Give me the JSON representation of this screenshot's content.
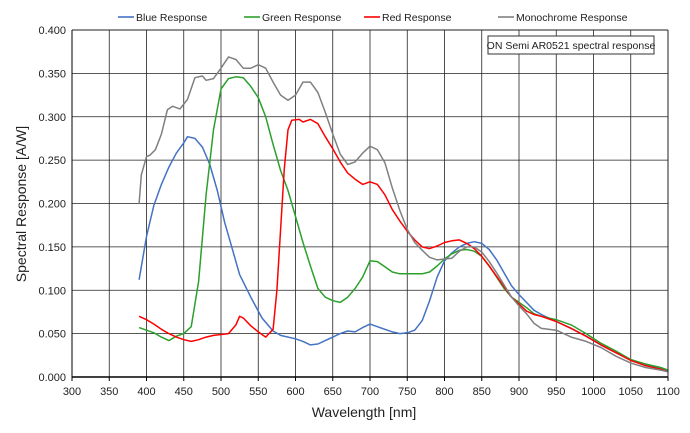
{
  "chart_data": {
    "type": "line",
    "title": "",
    "xlabel": "Wavelength [nm]",
    "ylabel": "Spectral Response [A/W]",
    "xlim": [
      300,
      1100
    ],
    "ylim": [
      0,
      0.4
    ],
    "x_ticks": [
      "300",
      "350",
      "400",
      "450",
      "500",
      "550",
      "600",
      "650",
      "700",
      "750",
      "800",
      "850",
      "900",
      "950",
      "1000",
      "1050",
      "1100"
    ],
    "y_ticks": [
      "0.000",
      "0.050",
      "0.100",
      "0.150",
      "0.200",
      "0.250",
      "0.300",
      "0.350",
      "0.400"
    ],
    "grid": true,
    "legend_position": "top",
    "annotation": "ON Semi AR0521 spectral response",
    "series": [
      {
        "name": "Blue Response",
        "color": "#4472c4",
        "points": [
          [
            390,
            0.112
          ],
          [
            400,
            0.162
          ],
          [
            410,
            0.198
          ],
          [
            420,
            0.222
          ],
          [
            430,
            0.242
          ],
          [
            440,
            0.258
          ],
          [
            450,
            0.27
          ],
          [
            455,
            0.277
          ],
          [
            465,
            0.275
          ],
          [
            475,
            0.265
          ],
          [
            485,
            0.245
          ],
          [
            495,
            0.215
          ],
          [
            505,
            0.178
          ],
          [
            515,
            0.148
          ],
          [
            525,
            0.118
          ],
          [
            540,
            0.092
          ],
          [
            555,
            0.068
          ],
          [
            570,
            0.053
          ],
          [
            580,
            0.048
          ],
          [
            600,
            0.044
          ],
          [
            610,
            0.041
          ],
          [
            620,
            0.037
          ],
          [
            630,
            0.038
          ],
          [
            640,
            0.042
          ],
          [
            650,
            0.046
          ],
          [
            660,
            0.05
          ],
          [
            670,
            0.053
          ],
          [
            680,
            0.052
          ],
          [
            690,
            0.057
          ],
          [
            700,
            0.061
          ],
          [
            710,
            0.058
          ],
          [
            720,
            0.055
          ],
          [
            730,
            0.052
          ],
          [
            740,
            0.05
          ],
          [
            750,
            0.051
          ],
          [
            760,
            0.054
          ],
          [
            770,
            0.065
          ],
          [
            780,
            0.088
          ],
          [
            790,
            0.115
          ],
          [
            800,
            0.134
          ],
          [
            810,
            0.143
          ],
          [
            820,
            0.15
          ],
          [
            830,
            0.154
          ],
          [
            840,
            0.156
          ],
          [
            850,
            0.154
          ],
          [
            860,
            0.147
          ],
          [
            870,
            0.135
          ],
          [
            880,
            0.12
          ],
          [
            890,
            0.105
          ],
          [
            900,
            0.095
          ],
          [
            910,
            0.086
          ],
          [
            920,
            0.077
          ],
          [
            930,
            0.072
          ],
          [
            950,
            0.064
          ],
          [
            970,
            0.056
          ],
          [
            990,
            0.047
          ],
          [
            1010,
            0.037
          ],
          [
            1030,
            0.028
          ],
          [
            1050,
            0.02
          ],
          [
            1070,
            0.014
          ],
          [
            1090,
            0.01
          ],
          [
            1100,
            0.007
          ]
        ]
      },
      {
        "name": "Green Response",
        "color": "#2ca02c",
        "points": [
          [
            390,
            0.057
          ],
          [
            400,
            0.054
          ],
          [
            410,
            0.051
          ],
          [
            420,
            0.046
          ],
          [
            430,
            0.042
          ],
          [
            440,
            0.047
          ],
          [
            450,
            0.05
          ],
          [
            460,
            0.058
          ],
          [
            470,
            0.11
          ],
          [
            480,
            0.21
          ],
          [
            490,
            0.285
          ],
          [
            500,
            0.332
          ],
          [
            510,
            0.344
          ],
          [
            520,
            0.346
          ],
          [
            530,
            0.345
          ],
          [
            540,
            0.335
          ],
          [
            550,
            0.322
          ],
          [
            560,
            0.3
          ],
          [
            570,
            0.268
          ],
          [
            580,
            0.238
          ],
          [
            590,
            0.215
          ],
          [
            600,
            0.185
          ],
          [
            610,
            0.155
          ],
          [
            620,
            0.128
          ],
          [
            630,
            0.102
          ],
          [
            640,
            0.092
          ],
          [
            650,
            0.088
          ],
          [
            660,
            0.086
          ],
          [
            670,
            0.092
          ],
          [
            680,
            0.102
          ],
          [
            690,
            0.115
          ],
          [
            700,
            0.134
          ],
          [
            710,
            0.133
          ],
          [
            720,
            0.127
          ],
          [
            730,
            0.121
          ],
          [
            740,
            0.119
          ],
          [
            750,
            0.119
          ],
          [
            760,
            0.119
          ],
          [
            770,
            0.119
          ],
          [
            780,
            0.121
          ],
          [
            790,
            0.128
          ],
          [
            800,
            0.136
          ],
          [
            810,
            0.142
          ],
          [
            820,
            0.146
          ],
          [
            830,
            0.147
          ],
          [
            840,
            0.145
          ],
          [
            850,
            0.139
          ],
          [
            860,
            0.128
          ],
          [
            870,
            0.115
          ],
          [
            880,
            0.102
          ],
          [
            890,
            0.092
          ],
          [
            900,
            0.086
          ],
          [
            910,
            0.08
          ],
          [
            920,
            0.073
          ],
          [
            930,
            0.07
          ],
          [
            950,
            0.066
          ],
          [
            970,
            0.06
          ],
          [
            990,
            0.05
          ],
          [
            1010,
            0.039
          ],
          [
            1030,
            0.03
          ],
          [
            1050,
            0.02
          ],
          [
            1070,
            0.015
          ],
          [
            1090,
            0.011
          ],
          [
            1100,
            0.008
          ]
        ]
      },
      {
        "name": "Red Response",
        "color": "#ff0000",
        "points": [
          [
            390,
            0.07
          ],
          [
            400,
            0.066
          ],
          [
            410,
            0.061
          ],
          [
            420,
            0.055
          ],
          [
            430,
            0.05
          ],
          [
            440,
            0.046
          ],
          [
            450,
            0.043
          ],
          [
            460,
            0.041
          ],
          [
            470,
            0.043
          ],
          [
            480,
            0.046
          ],
          [
            490,
            0.048
          ],
          [
            500,
            0.049
          ],
          [
            510,
            0.05
          ],
          [
            520,
            0.06
          ],
          [
            525,
            0.07
          ],
          [
            530,
            0.068
          ],
          [
            540,
            0.059
          ],
          [
            550,
            0.052
          ],
          [
            560,
            0.046
          ],
          [
            570,
            0.055
          ],
          [
            575,
            0.1
          ],
          [
            580,
            0.17
          ],
          [
            585,
            0.24
          ],
          [
            590,
            0.285
          ],
          [
            595,
            0.296
          ],
          [
            605,
            0.297
          ],
          [
            610,
            0.294
          ],
          [
            620,
            0.297
          ],
          [
            630,
            0.292
          ],
          [
            640,
            0.277
          ],
          [
            650,
            0.263
          ],
          [
            660,
            0.248
          ],
          [
            670,
            0.235
          ],
          [
            680,
            0.228
          ],
          [
            690,
            0.222
          ],
          [
            700,
            0.225
          ],
          [
            710,
            0.222
          ],
          [
            720,
            0.21
          ],
          [
            730,
            0.193
          ],
          [
            740,
            0.18
          ],
          [
            750,
            0.168
          ],
          [
            760,
            0.158
          ],
          [
            770,
            0.15
          ],
          [
            780,
            0.148
          ],
          [
            790,
            0.151
          ],
          [
            800,
            0.155
          ],
          [
            810,
            0.157
          ],
          [
            820,
            0.158
          ],
          [
            830,
            0.154
          ],
          [
            840,
            0.148
          ],
          [
            850,
            0.139
          ],
          [
            860,
            0.128
          ],
          [
            870,
            0.116
          ],
          [
            880,
            0.104
          ],
          [
            890,
            0.092
          ],
          [
            900,
            0.084
          ],
          [
            910,
            0.076
          ],
          [
            920,
            0.072
          ],
          [
            930,
            0.07
          ],
          [
            950,
            0.064
          ],
          [
            970,
            0.056
          ],
          [
            990,
            0.047
          ],
          [
            1010,
            0.037
          ],
          [
            1030,
            0.028
          ],
          [
            1050,
            0.019
          ],
          [
            1070,
            0.013
          ],
          [
            1090,
            0.009
          ],
          [
            1100,
            0.006
          ]
        ]
      },
      {
        "name": "Monochrome Response",
        "color": "#808080",
        "points": [
          [
            390,
            0.2
          ],
          [
            393,
            0.233
          ],
          [
            400,
            0.254
          ],
          [
            405,
            0.256
          ],
          [
            412,
            0.262
          ],
          [
            420,
            0.28
          ],
          [
            428,
            0.308
          ],
          [
            435,
            0.312
          ],
          [
            445,
            0.309
          ],
          [
            455,
            0.32
          ],
          [
            465,
            0.345
          ],
          [
            475,
            0.347
          ],
          [
            480,
            0.342
          ],
          [
            490,
            0.344
          ],
          [
            500,
            0.356
          ],
          [
            510,
            0.369
          ],
          [
            520,
            0.366
          ],
          [
            530,
            0.356
          ],
          [
            540,
            0.356
          ],
          [
            550,
            0.36
          ],
          [
            560,
            0.356
          ],
          [
            570,
            0.34
          ],
          [
            580,
            0.325
          ],
          [
            590,
            0.319
          ],
          [
            600,
            0.325
          ],
          [
            610,
            0.34
          ],
          [
            620,
            0.34
          ],
          [
            630,
            0.328
          ],
          [
            640,
            0.305
          ],
          [
            650,
            0.28
          ],
          [
            660,
            0.257
          ],
          [
            670,
            0.245
          ],
          [
            680,
            0.248
          ],
          [
            690,
            0.258
          ],
          [
            700,
            0.266
          ],
          [
            710,
            0.262
          ],
          [
            720,
            0.247
          ],
          [
            730,
            0.218
          ],
          [
            740,
            0.192
          ],
          [
            750,
            0.17
          ],
          [
            760,
            0.155
          ],
          [
            770,
            0.146
          ],
          [
            780,
            0.138
          ],
          [
            790,
            0.135
          ],
          [
            800,
            0.136
          ],
          [
            810,
            0.137
          ],
          [
            820,
            0.145
          ],
          [
            830,
            0.15
          ],
          [
            840,
            0.15
          ],
          [
            850,
            0.144
          ],
          [
            860,
            0.133
          ],
          [
            870,
            0.12
          ],
          [
            880,
            0.106
          ],
          [
            890,
            0.092
          ],
          [
            900,
            0.082
          ],
          [
            910,
            0.073
          ],
          [
            920,
            0.062
          ],
          [
            930,
            0.056
          ],
          [
            950,
            0.054
          ],
          [
            970,
            0.046
          ],
          [
            990,
            0.041
          ],
          [
            1010,
            0.034
          ],
          [
            1030,
            0.024
          ],
          [
            1050,
            0.016
          ],
          [
            1070,
            0.011
          ],
          [
            1090,
            0.008
          ],
          [
            1100,
            0.006
          ]
        ]
      }
    ]
  }
}
